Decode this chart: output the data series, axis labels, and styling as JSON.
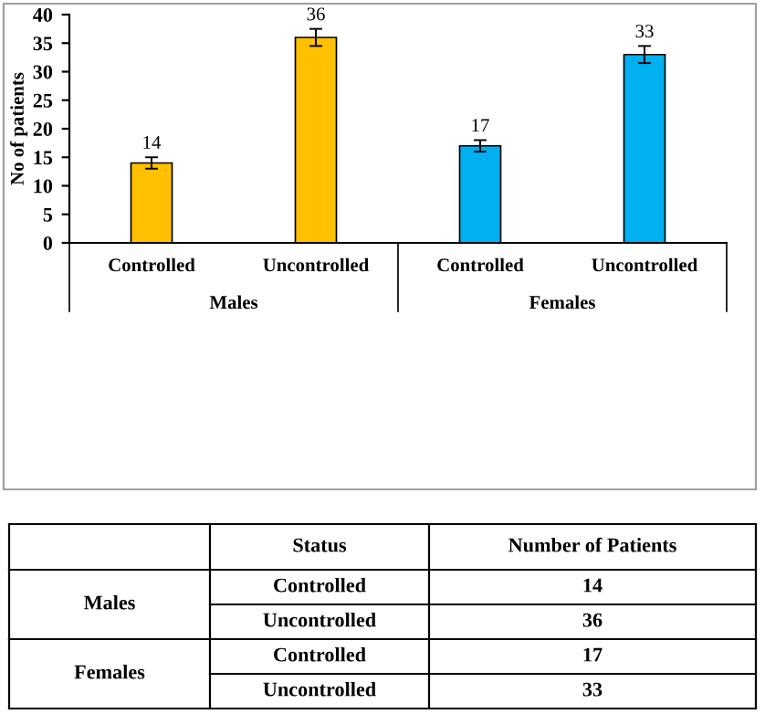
{
  "chart_data": [
    {
      "type": "bar",
      "ylabel": "No of patients",
      "categories": [
        "Controlled",
        "Uncontrolled",
        "Controlled",
        "Uncontrolled"
      ],
      "values": [
        14,
        36,
        17,
        33
      ],
      "colors": [
        "#ffc000",
        "#ffc000",
        "#00b0f0",
        "#00b0f0"
      ],
      "errors": [
        1,
        1.5,
        1,
        1.5
      ],
      "ylim": [
        0,
        40
      ],
      "yticks": [
        0,
        5,
        10,
        15,
        20,
        25,
        30,
        35,
        40
      ],
      "data_labels": true,
      "annotations": [
        "Males",
        "Females"
      ]
    },
    {
      "type": "other",
      "categories": [
        "Controlled",
        "Uncontrolled",
        "Controlled",
        "Uncontrolled"
      ],
      "values": [
        14,
        36,
        17,
        33
      ],
      "data_labels": true,
      "annotations": [
        "Status",
        "Number of Patients",
        "Males",
        "Females"
      ]
    }
  ]
}
